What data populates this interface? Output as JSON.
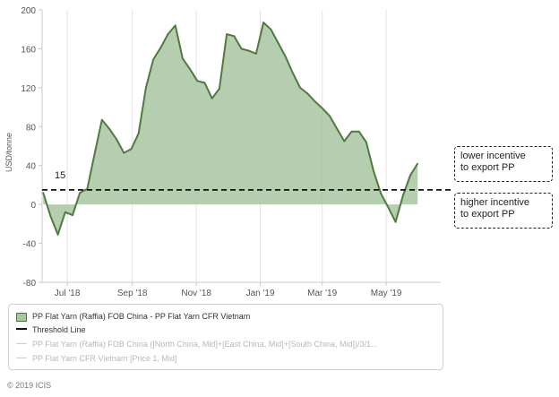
{
  "chart_data": {
    "type": "area",
    "ylabel": "USD/tonne",
    "ylim": [
      -80,
      200
    ],
    "yticks": [
      200,
      160,
      120,
      80,
      40,
      0,
      -40,
      -80
    ],
    "xticks": [
      {
        "label": "Jul '18",
        "x": "2018-07-01"
      },
      {
        "label": "Sep '18",
        "x": "2018-09-01"
      },
      {
        "label": "Nov '18",
        "x": "2018-11-01"
      },
      {
        "label": "Jan '19",
        "x": "2019-01-01"
      },
      {
        "label": "Mar '19",
        "x": "2019-03-01"
      },
      {
        "label": "May '19",
        "x": "2019-05-01"
      }
    ],
    "xrange": [
      "2018-06-07",
      "2019-06-22"
    ],
    "grid": "vertical",
    "series": [
      {
        "name": "PP Flat Yarn (Raffia) FOB China - PP Flat Yarn CFR Vietnam",
        "color": "#4f7a3e",
        "fill": "#a9c5a2",
        "points": [
          [
            "2018-06-08",
            12
          ],
          [
            "2018-06-15",
            -12
          ],
          [
            "2018-06-22",
            -31
          ],
          [
            "2018-06-29",
            -8
          ],
          [
            "2018-07-06",
            -11
          ],
          [
            "2018-07-13",
            12
          ],
          [
            "2018-07-20",
            16
          ],
          [
            "2018-07-27",
            52
          ],
          [
            "2018-08-03",
            87
          ],
          [
            "2018-08-10",
            78
          ],
          [
            "2018-08-17",
            67
          ],
          [
            "2018-08-24",
            53
          ],
          [
            "2018-08-31",
            57
          ],
          [
            "2018-09-07",
            73
          ],
          [
            "2018-09-14",
            120
          ],
          [
            "2018-09-21",
            149
          ],
          [
            "2018-09-28",
            161
          ],
          [
            "2018-10-05",
            175
          ],
          [
            "2018-10-12",
            184
          ],
          [
            "2018-10-19",
            150
          ],
          [
            "2018-10-26",
            139
          ],
          [
            "2018-11-02",
            127
          ],
          [
            "2018-11-09",
            125
          ],
          [
            "2018-11-16",
            109
          ],
          [
            "2018-11-23",
            119
          ],
          [
            "2018-11-30",
            175
          ],
          [
            "2018-12-07",
            173
          ],
          [
            "2018-12-14",
            160
          ],
          [
            "2018-12-21",
            158
          ],
          [
            "2018-12-28",
            155
          ],
          [
            "2019-01-04",
            187
          ],
          [
            "2019-01-11",
            180
          ],
          [
            "2019-01-18",
            166
          ],
          [
            "2019-01-25",
            152
          ],
          [
            "2019-02-01",
            135
          ],
          [
            "2019-02-08",
            120
          ],
          [
            "2019-02-15",
            114
          ],
          [
            "2019-02-22",
            106
          ],
          [
            "2019-03-01",
            99
          ],
          [
            "2019-03-08",
            91
          ],
          [
            "2019-03-15",
            78
          ],
          [
            "2019-03-22",
            65
          ],
          [
            "2019-03-29",
            75
          ],
          [
            "2019-04-05",
            75
          ],
          [
            "2019-04-12",
            64
          ],
          [
            "2019-04-19",
            34
          ],
          [
            "2019-04-26",
            11
          ],
          [
            "2019-05-03",
            -3
          ],
          [
            "2019-05-10",
            -18
          ],
          [
            "2019-05-17",
            9
          ],
          [
            "2019-05-24",
            30
          ],
          [
            "2019-05-31",
            42
          ]
        ]
      },
      {
        "name": "Threshold Line",
        "style": "dashed",
        "color": "#111111",
        "value": 15
      }
    ],
    "annotations": [
      {
        "text": "15",
        "y": 15
      },
      {
        "text": "lower incentive\nto export PP"
      },
      {
        "text": "higher incentive\nto export PP"
      }
    ],
    "legend_position": "bottom",
    "legend": [
      {
        "label": "PP Flat Yarn (Raffia) FOB China - PP Flat Yarn CFR Vietnam",
        "visible": true
      },
      {
        "label": "Threshold Line",
        "visible": true
      },
      {
        "label": "PP Flat Yarn (Raffia) FOB China ([North China, Mid]+[East China, Mid]+[South China, Mid])/3/1...",
        "visible": false
      },
      {
        "label": "PP Flat Yarn CFR Vietnam [Price 1, Mid]",
        "visible": false
      }
    ]
  },
  "callouts": {
    "lower": [
      "lower incentive",
      "to export PP"
    ],
    "higher": [
      "higher incentive",
      "to export PP"
    ]
  },
  "threshold_label": "15",
  "copyright": "© 2019 ICIS"
}
